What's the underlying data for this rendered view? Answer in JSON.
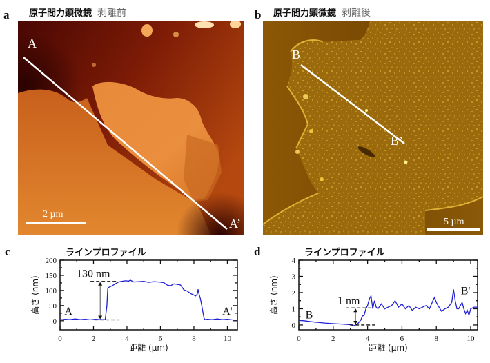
{
  "panels": {
    "a": {
      "letter": "a",
      "title_bold": "原子間力顕微鏡",
      "title_light": "剥離前",
      "start_label": "A",
      "end_label": "A’",
      "scale_bar": "2 µm",
      "colormap": [
        "#3a0402",
        "#7a1a05",
        "#b84a10",
        "#e07a2a",
        "#f3a24e",
        "#ffd9a0"
      ]
    },
    "b": {
      "letter": "b",
      "title_bold": "原子間力顕微鏡",
      "title_light": "剥離後",
      "start_label": "B",
      "end_label": "B’",
      "scale_bar": "5 µm",
      "colormap": [
        "#5a3102",
        "#8a5606",
        "#b27a10",
        "#d8a21c",
        "#f4cf3a",
        "#fff18a"
      ]
    },
    "c": {
      "letter": "c",
      "title": "ラインプロファイル",
      "annotation": "130 nm",
      "start_label": "A",
      "end_label": "A'"
    },
    "d": {
      "letter": "d",
      "title": "ラインプロファイル",
      "annotation": "1 nm",
      "start_label": "B",
      "end_label": "B'"
    }
  },
  "chart_data": [
    {
      "type": "line",
      "title": "ラインプロファイル",
      "panel": "c",
      "xlabel": "距離 (µm)",
      "ylabel": "高さ (nm)",
      "xlim": [
        0,
        10.6
      ],
      "ylim": [
        -30,
        200
      ],
      "xticks": [
        0,
        2,
        4,
        6,
        8,
        10
      ],
      "yticks": [
        0,
        50,
        100,
        150,
        200
      ],
      "grid": false,
      "color": "#1f1fd6",
      "annotations": [
        {
          "text": "130 nm",
          "x": 2.4,
          "y_from": 3,
          "y_to": 130
        },
        {
          "text": "A",
          "x": 0.5,
          "y": 20
        },
        {
          "text": "A'",
          "x": 10.0,
          "y": 20
        }
      ],
      "series": [
        {
          "name": "A–A'",
          "x": [
            0,
            0.3,
            0.6,
            0.9,
            1.2,
            1.5,
            1.8,
            2.1,
            2.4,
            2.7,
            2.8,
            2.85,
            2.9,
            3.1,
            3.3,
            3.5,
            3.7,
            3.9,
            4.1,
            4.2,
            4.4,
            4.7,
            5.0,
            5.3,
            5.6,
            5.9,
            6.2,
            6.4,
            6.6,
            6.8,
            7.0,
            7.2,
            7.4,
            7.6,
            7.8,
            8.0,
            8.1,
            8.2,
            8.25,
            8.3,
            8.4,
            8.5,
            8.6,
            8.65,
            8.8,
            9.1,
            9.4,
            9.7,
            10.0,
            10.3,
            10.6
          ],
          "y": [
            3,
            5,
            4,
            6,
            4,
            5,
            3,
            5,
            4,
            4,
            50,
            105,
            110,
            115,
            122,
            128,
            130,
            132,
            131,
            134,
            128,
            129,
            130,
            127,
            129,
            128,
            126,
            118,
            115,
            122,
            120,
            118,
            102,
            98,
            90,
            85,
            82,
            88,
            104,
            90,
            70,
            40,
            10,
            4,
            5,
            4,
            6,
            4,
            5,
            3,
            2
          ]
        }
      ]
    },
    {
      "type": "line",
      "title": "ラインプロファイル",
      "panel": "d",
      "xlabel": "距離 (µm)",
      "ylabel": "高さ (nm)",
      "xlim": [
        0,
        10.4
      ],
      "ylim": [
        -0.3,
        4
      ],
      "xticks": [
        0,
        2,
        4,
        6,
        8,
        10
      ],
      "yticks": [
        0,
        1,
        2,
        3,
        4
      ],
      "grid": false,
      "color": "#1f1fd6",
      "annotations": [
        {
          "text": "1 nm",
          "x": 3.3,
          "y_from": 0,
          "y_to": 1.05
        },
        {
          "text": "B",
          "x": 0.6,
          "y": 0.4
        },
        {
          "text": "B'",
          "x": 9.7,
          "y": 1.9
        }
      ],
      "series": [
        {
          "name": "B–B'",
          "x": [
            0,
            0.3,
            0.6,
            0.9,
            1.2,
            1.5,
            1.8,
            2.1,
            2.4,
            2.7,
            3.0,
            3.2,
            3.4,
            3.6,
            3.7,
            3.8,
            3.9,
            4.0,
            4.1,
            4.2,
            4.3,
            4.4,
            4.5,
            4.6,
            4.8,
            5.0,
            5.2,
            5.4,
            5.6,
            5.8,
            6.0,
            6.2,
            6.4,
            6.6,
            6.8,
            7.0,
            7.2,
            7.4,
            7.6,
            7.8,
            7.9,
            8.0,
            8.1,
            8.3,
            8.5,
            8.7,
            8.9,
            9.0,
            9.1,
            9.2,
            9.3,
            9.5,
            9.6,
            9.7,
            9.8,
            9.9,
            10.0,
            10.2,
            10.4
          ],
          "y": [
            0.28,
            0.26,
            0.22,
            0.18,
            0.15,
            0.12,
            0.1,
            0.08,
            0.06,
            0.04,
            0.02,
            -0.05,
            0.05,
            0.3,
            0.55,
            0.6,
            1.0,
            1.2,
            1.6,
            1.8,
            1.0,
            1.5,
            1.1,
            1.0,
            1.3,
            1.0,
            1.1,
            1.2,
            1.5,
            1.1,
            1.3,
            1.0,
            1.2,
            0.9,
            1.1,
            1.0,
            1.1,
            1.2,
            1.0,
            1.5,
            1.7,
            1.4,
            1.2,
            0.85,
            1.0,
            1.1,
            1.4,
            2.2,
            1.5,
            1.0,
            1.0,
            1.4,
            1.0,
            0.7,
            0.9,
            0.6,
            1.0,
            1.1,
            1.1
          ]
        }
      ]
    }
  ]
}
